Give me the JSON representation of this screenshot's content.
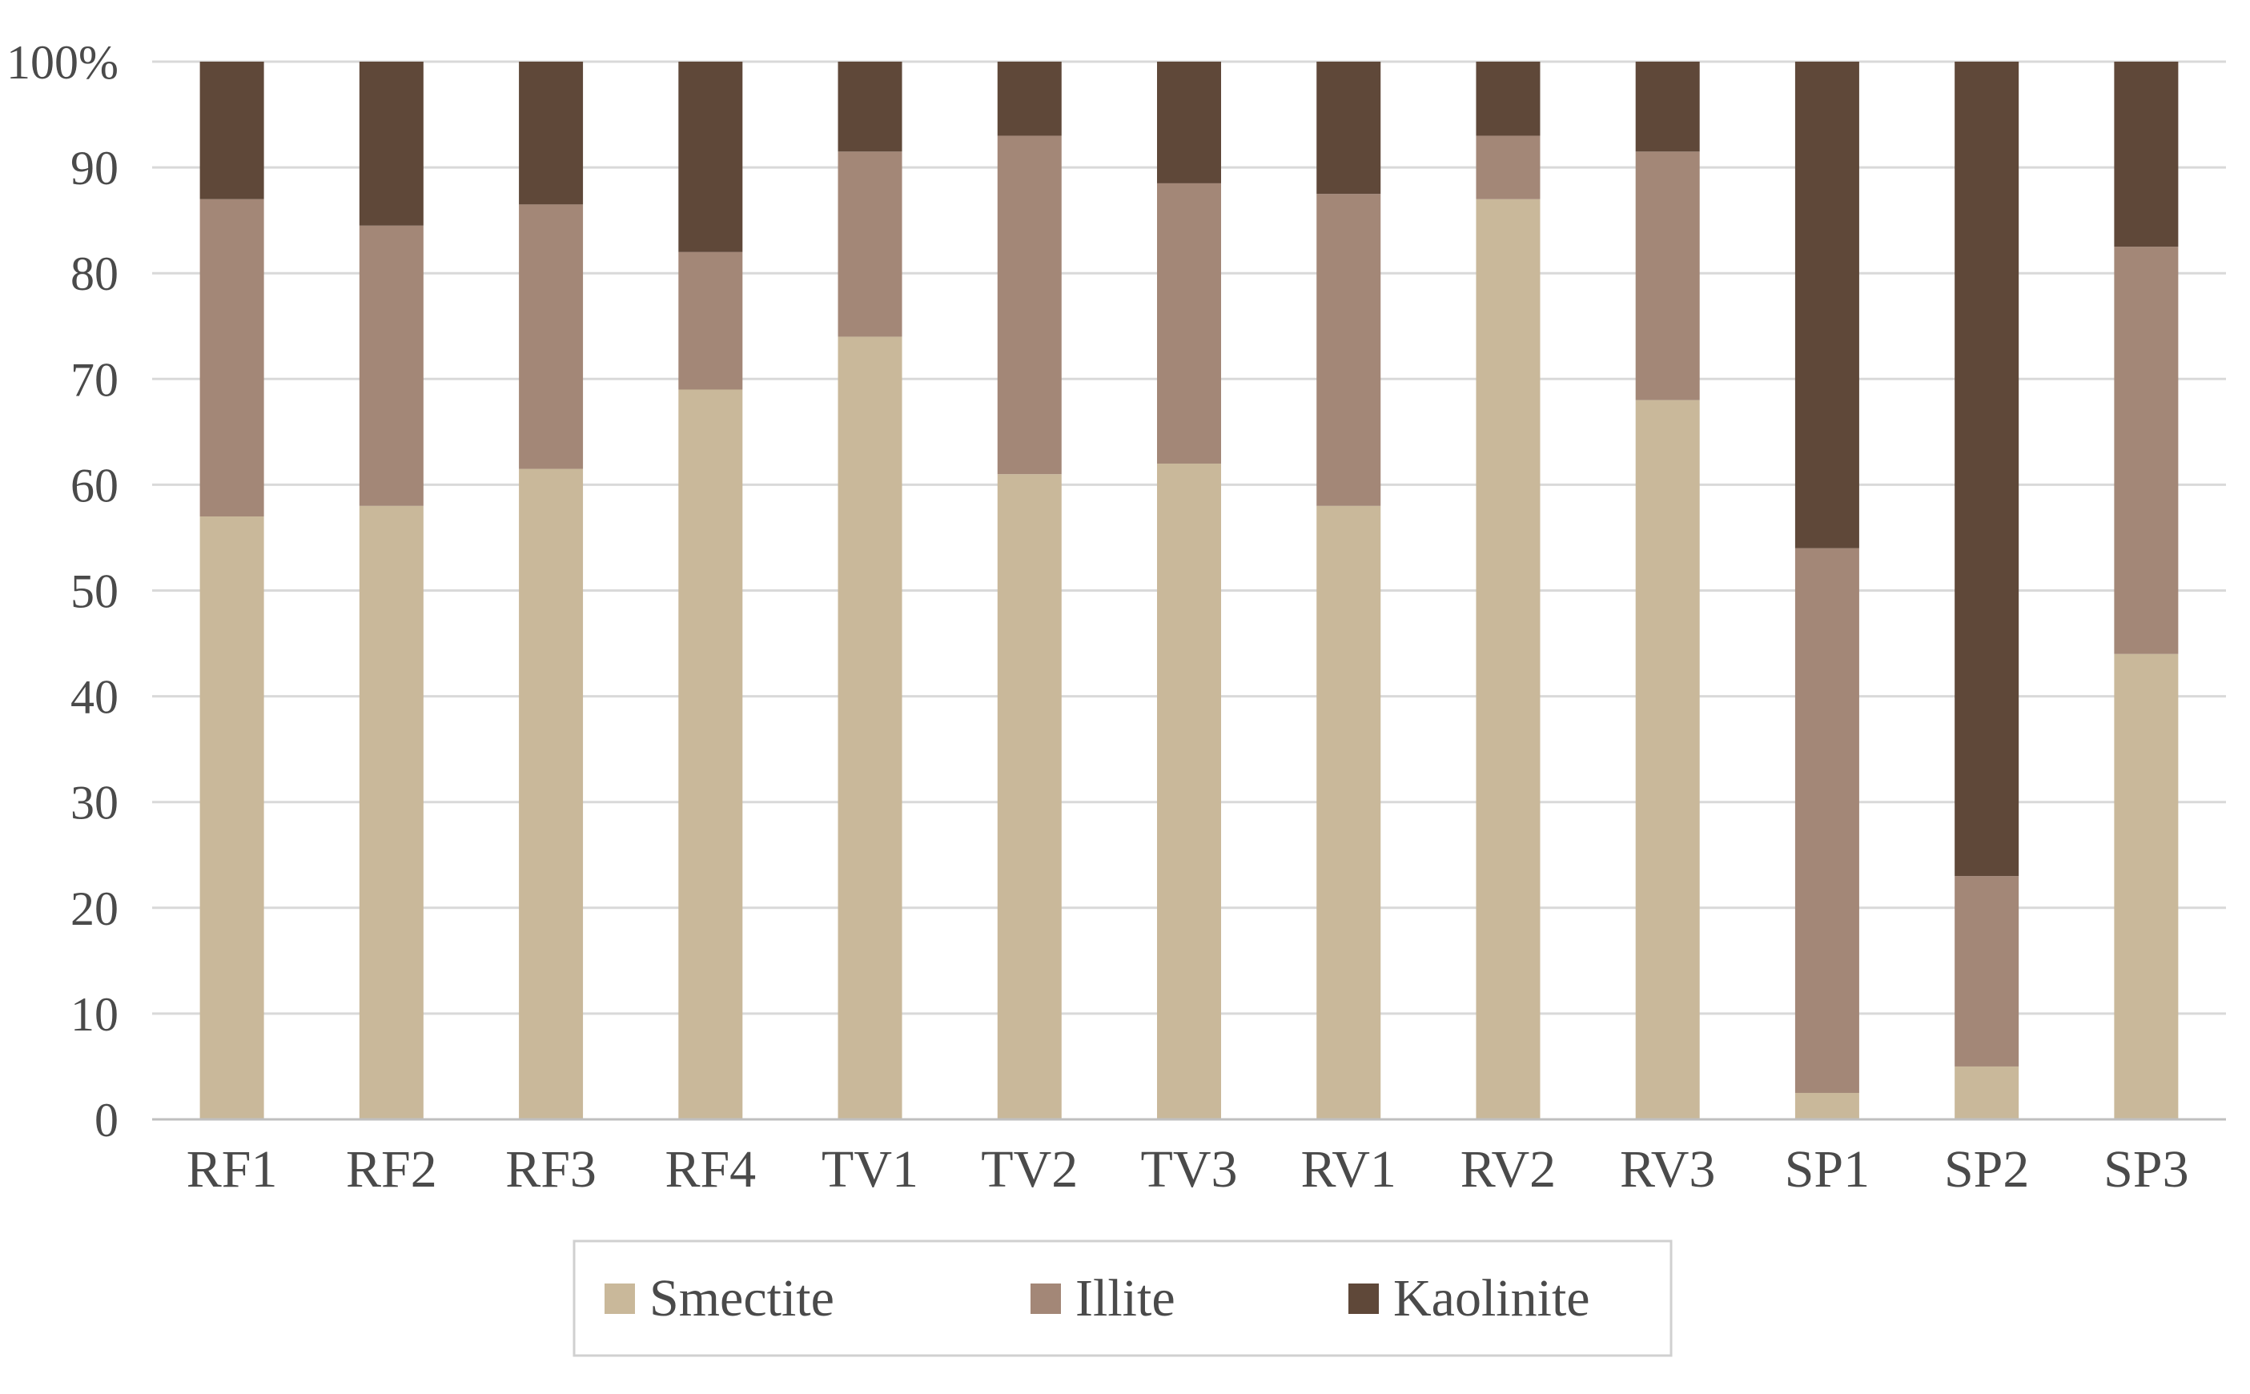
{
  "chart_data": {
    "type": "bar",
    "stacked": true,
    "categories": [
      "RF1",
      "RF2",
      "RF3",
      "RF4",
      "TV1",
      "TV2",
      "TV3",
      "RV1",
      "RV2",
      "RV3",
      "SP1",
      "SP2",
      "SP3"
    ],
    "series": [
      {
        "name": "Smectite",
        "color": "#c9b89a",
        "values": [
          57,
          58,
          61.5,
          69,
          74,
          61,
          62,
          58,
          87,
          68,
          2.5,
          5,
          44
        ]
      },
      {
        "name": "Illite",
        "color": "#a38777",
        "values": [
          30,
          26.5,
          25,
          13,
          17.5,
          32,
          26.5,
          29.5,
          6,
          23.5,
          51.5,
          18,
          38.5
        ]
      },
      {
        "name": "Kaolinite",
        "color": "#5f4839",
        "values": [
          13,
          15.5,
          13.5,
          18,
          8.5,
          7,
          11.5,
          12.5,
          7,
          8.5,
          46,
          77,
          17.5
        ]
      }
    ],
    "y_ticks": [
      "0",
      "10",
      "20",
      "30",
      "40",
      "50",
      "60",
      "70",
      "80",
      "90",
      "100%"
    ],
    "ylim": [
      0,
      100
    ],
    "grid": true,
    "legend_position": "bottom"
  }
}
